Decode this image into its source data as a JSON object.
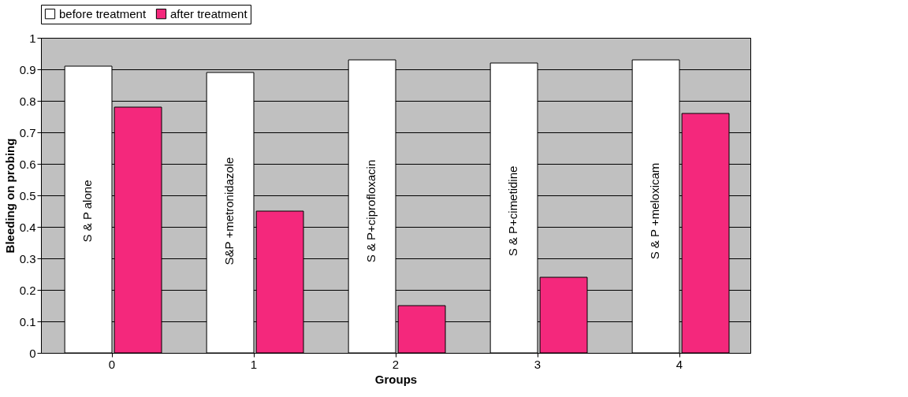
{
  "chart_data": {
    "type": "bar",
    "xlabel": "Groups",
    "ylabel": "Bleeding on probing",
    "categories": [
      "0",
      "1",
      "2",
      "3",
      "4"
    ],
    "series": [
      {
        "name": "before treatment",
        "color": "#ffffff",
        "values": [
          0.91,
          0.89,
          0.93,
          0.92,
          0.93
        ]
      },
      {
        "name": "after treatment",
        "color": "#f4287c",
        "values": [
          0.78,
          0.45,
          0.15,
          0.24,
          0.76
        ]
      }
    ],
    "ylim": [
      0,
      1
    ],
    "yticks": [
      0,
      0.1,
      0.2,
      0.3,
      0.4,
      0.5,
      0.6,
      0.7,
      0.8,
      0.9,
      1
    ],
    "grid": "y",
    "legend": "top",
    "annotations": [
      {
        "text": "S & P alone",
        "x": "0",
        "y": 0.45
      },
      {
        "text": "S&P +metronidazole",
        "x": "1",
        "y": 0.45
      },
      {
        "text": "S & P+ciprofloxacin",
        "x": "2",
        "y": 0.45
      },
      {
        "text": "S & P+cimetidine",
        "x": "3",
        "y": 0.45
      },
      {
        "text": "S & P +meloxicam",
        "x": "4",
        "y": 0.45
      }
    ]
  }
}
